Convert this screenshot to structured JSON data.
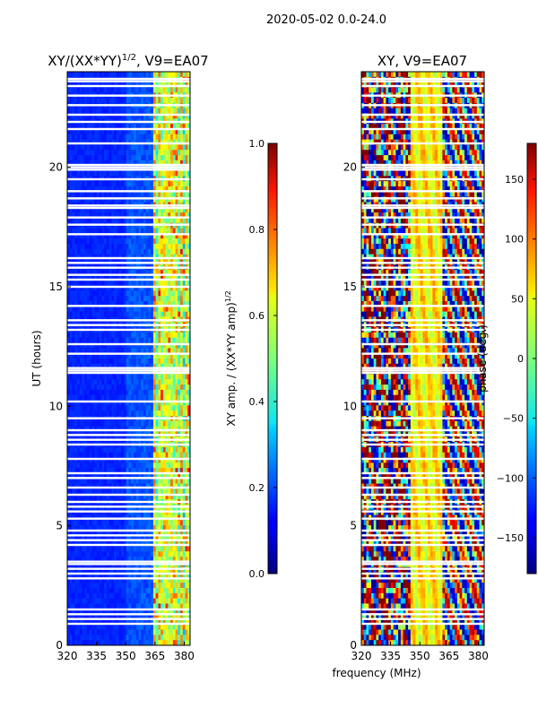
{
  "figure": {
    "suptitle": "2020-05-02 0.0-24.0",
    "common_xlabel": "frequency (MHz)"
  },
  "chart_data": [
    {
      "type": "heatmap",
      "id": "amp",
      "title_main": "XY/(XX*YY)",
      "title_exp": "1/2",
      "title_suffix": ", V9=EA07",
      "ylabel": "UT (hours)",
      "xlabel": "frequency (MHz)",
      "xlim": [
        320,
        383
      ],
      "ylim": [
        0,
        24
      ],
      "xticks": [
        320,
        335,
        350,
        365,
        380
      ],
      "yticks": [
        0,
        5,
        10,
        15,
        20
      ],
      "colormap": "jet",
      "colorbar": {
        "label_main": "XY amp. / (XX*YY amp)",
        "label_exp": "1/2",
        "range": [
          0.0,
          1.0
        ],
        "ticks": [
          "0.0",
          "0.2",
          "0.4",
          "0.6",
          "0.8",
          "1.0"
        ],
        "tick_values": [
          0.0,
          0.2,
          0.4,
          0.6,
          0.8,
          1.0
        ]
      },
      "flagged_ut_hours": [
        0.9,
        1.1,
        1.3,
        1.5,
        2.8,
        3.0,
        3.2,
        3.4,
        3.5,
        4.2,
        4.4,
        4.6,
        4.8,
        5.3,
        5.6,
        5.8,
        6.0,
        6.3,
        6.6,
        7.0,
        7.2,
        7.8,
        8.4,
        8.6,
        8.8,
        9.0,
        9.5,
        10.2,
        11.4,
        11.5,
        11.6,
        12.2,
        12.6,
        13.2,
        13.4,
        13.6,
        14.2,
        15.0,
        15.3,
        15.5,
        15.8,
        16.0,
        16.2,
        17.2,
        17.6,
        17.9,
        18.3,
        18.4,
        18.7,
        19.0,
        19.5,
        19.9,
        20.0,
        20.1,
        21.0,
        21.6,
        21.9,
        22.2,
        22.6,
        23.0,
        23.4,
        23.6,
        23.7
      ]
    },
    {
      "type": "heatmap",
      "id": "phase",
      "title": "XY, V9=EA07",
      "xlabel": "frequency (MHz)",
      "xlim": [
        320,
        383
      ],
      "ylim": [
        0,
        24
      ],
      "xticks": [
        320,
        335,
        350,
        365,
        380
      ],
      "yticks": [
        0,
        5,
        10,
        15,
        20
      ],
      "colormap": "jet",
      "colorbar": {
        "label": "phase (deg.)",
        "range": [
          -180,
          180
        ],
        "ticks": [
          "−150",
          "−100",
          "−50",
          "0",
          "50",
          "100",
          "150"
        ],
        "tick_values": [
          -150,
          -100,
          -50,
          0,
          50,
          100,
          150
        ]
      },
      "flagged_ut_hours": [
        0.9,
        1.1,
        1.3,
        1.5,
        2.8,
        3.0,
        3.2,
        3.4,
        3.5,
        4.2,
        4.4,
        4.6,
        4.8,
        5.3,
        5.6,
        5.8,
        6.0,
        6.3,
        6.6,
        7.0,
        7.2,
        7.8,
        8.4,
        8.6,
        8.8,
        9.0,
        9.5,
        10.2,
        11.4,
        11.5,
        11.6,
        12.2,
        12.6,
        13.2,
        13.4,
        13.6,
        14.2,
        15.0,
        15.3,
        15.5,
        15.8,
        16.0,
        16.2,
        17.2,
        17.6,
        17.9,
        18.3,
        18.4,
        18.7,
        19.0,
        19.5,
        19.9,
        20.0,
        20.1,
        21.0,
        21.6,
        21.9,
        22.2,
        22.6,
        23.0,
        23.4,
        23.6,
        23.7
      ]
    }
  ]
}
